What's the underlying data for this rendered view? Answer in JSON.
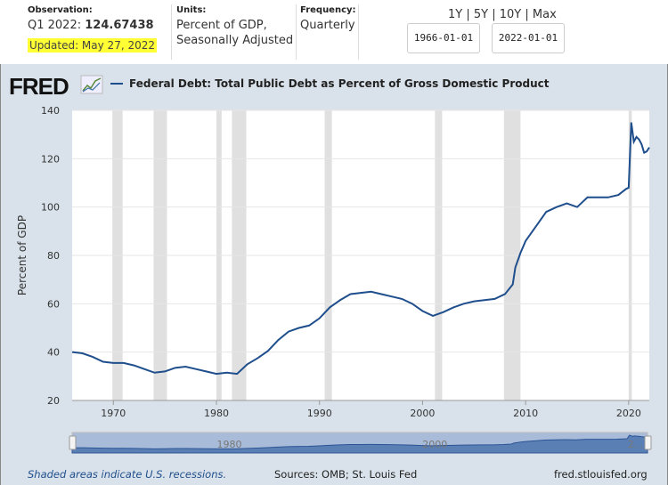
{
  "observation": {
    "label": "Observation:",
    "period": "Q1 2022:",
    "value": "124.67438",
    "updated": "Updated: May 27, 2022"
  },
  "units": {
    "label": "Units:",
    "line1": "Percent of GDP,",
    "line2": "Seasonally Adjusted"
  },
  "frequency": {
    "label": "Frequency:",
    "value": "Quarterly"
  },
  "ranges": [
    "1Y",
    "5Y",
    "10Y",
    "Max"
  ],
  "date_start": "1966-01-01",
  "date_end": "2022-01-01",
  "title": "Federal Debt: Total Public Debt as Percent of Gross Domestic Product",
  "logo": "FRED",
  "footer": {
    "recessions": "Shaded areas indicate U.S. recessions.",
    "sources": "Sources: OMB; St. Louis Fed",
    "site": "fred.stlouisfed.org"
  },
  "navigator": {
    "ticks": [
      "1980",
      "2000",
      "2..."
    ]
  },
  "colors": {
    "line": "#1f4e8c",
    "recession": "#e0e0e0",
    "highlight": "#ffff33"
  },
  "chart_data": {
    "type": "line",
    "title": "Federal Debt: Total Public Debt as Percent of Gross Domestic Product",
    "xlabel": "",
    "ylabel": "Percent of GDP",
    "xlim": [
      1966,
      2022
    ],
    "ylim": [
      20,
      140
    ],
    "xticks": [
      1970,
      1980,
      1990,
      2000,
      2010,
      2020
    ],
    "yticks": [
      20,
      40,
      60,
      80,
      100,
      120,
      140
    ],
    "grid": "horizontal",
    "legend": "top",
    "recessions": [
      [
        1969.9,
        1970.9
      ],
      [
        1973.9,
        1975.2
      ],
      [
        1980.0,
        1980.5
      ],
      [
        1981.5,
        1982.9
      ],
      [
        1990.5,
        1991.2
      ],
      [
        2001.2,
        2001.9
      ],
      [
        2007.9,
        2009.5
      ],
      [
        2020.0,
        2020.3
      ]
    ],
    "series": [
      {
        "name": "Federal Debt: Total Public Debt as Percent of Gross Domestic Product",
        "x": [
          1966,
          1967,
          1968,
          1969,
          1970,
          1971,
          1972,
          1973,
          1974,
          1975,
          1976,
          1977,
          1978,
          1979,
          1980,
          1981,
          1982,
          1983,
          1984,
          1985,
          1986,
          1987,
          1988,
          1989,
          1990,
          1991,
          1992,
          1993,
          1994,
          1995,
          1996,
          1997,
          1998,
          1999,
          2000,
          2001,
          2002,
          2003,
          2004,
          2005,
          2006,
          2007,
          2008,
          2008.75,
          2009,
          2009.5,
          2010,
          2011,
          2012,
          2013,
          2014,
          2015,
          2016,
          2017,
          2018,
          2019,
          2019.75,
          2020,
          2020.25,
          2020.5,
          2020.75,
          2021,
          2021.25,
          2021.5,
          2021.75,
          2022
        ],
        "y": [
          40,
          39.5,
          38,
          36,
          35.5,
          35.5,
          34.5,
          33,
          31.5,
          32,
          33.5,
          34,
          33,
          32,
          31,
          31.5,
          31,
          35,
          37.5,
          40.5,
          45,
          48.5,
          50,
          51,
          54,
          58.5,
          61.5,
          64,
          64.5,
          65,
          64,
          63,
          62,
          60,
          57,
          55,
          56.5,
          58.5,
          60,
          61,
          61.5,
          62,
          64,
          68,
          75,
          81,
          86,
          92,
          98,
          100,
          101.5,
          100,
          104,
          104,
          104,
          105,
          107.5,
          108,
          135,
          127,
          129,
          128,
          126,
          122.5,
          123,
          124.67
        ]
      }
    ]
  }
}
